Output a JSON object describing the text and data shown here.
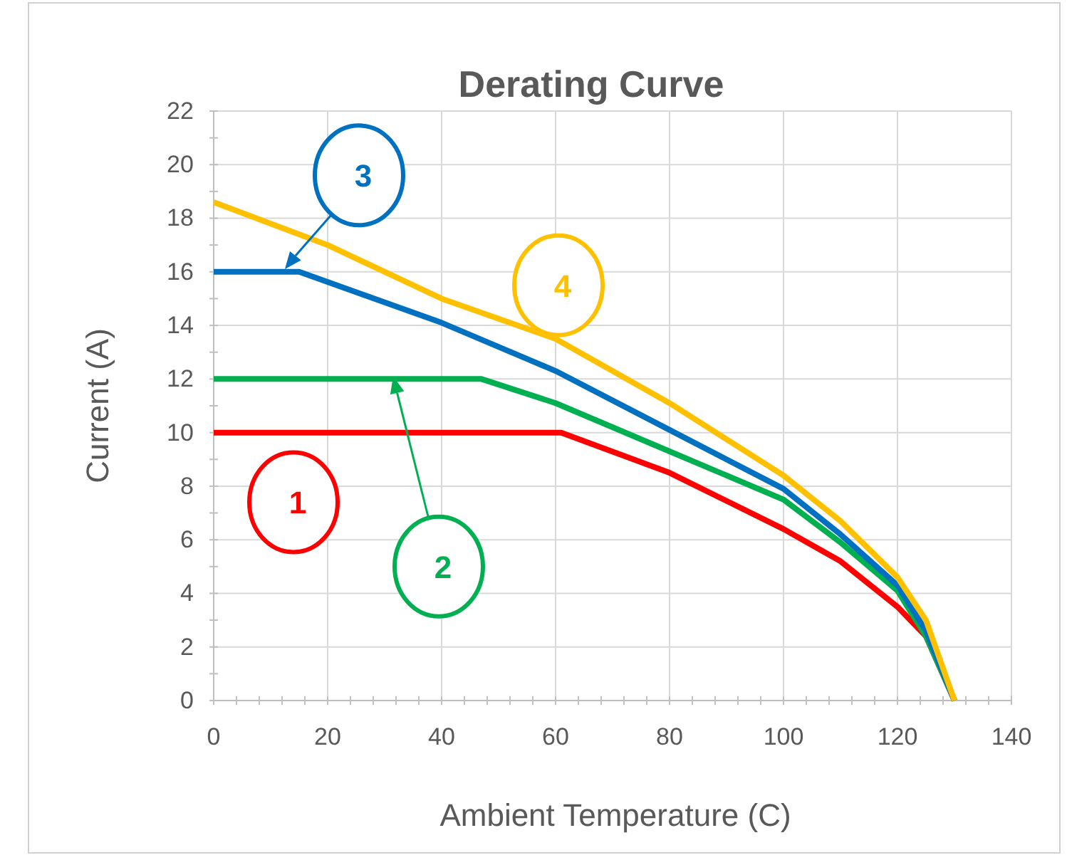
{
  "chart_data": {
    "type": "line",
    "title": "Derating Curve",
    "xlabel": "Ambient Temperature (C)",
    "ylabel": "Current (A)",
    "xlim": [
      0,
      140
    ],
    "ylim": [
      0,
      22
    ],
    "xticks": [
      0,
      {
        "value": 4,
        "label": null
      },
      {
        "value": 8,
        "label": null
      },
      {
        "value": 12,
        "label": null
      },
      {
        "value": 16,
        "label": null
      },
      20,
      {
        "value": 24,
        "label": null
      },
      {
        "value": 28,
        "label": null
      },
      {
        "value": 32,
        "label": null
      },
      {
        "value": 36,
        "label": null
      },
      40,
      {
        "value": 44,
        "label": null
      },
      {
        "value": 48,
        "label": null
      },
      {
        "value": 52,
        "label": null
      },
      {
        "value": 56,
        "label": null
      },
      60,
      {
        "value": 64,
        "label": null
      },
      {
        "value": 68,
        "label": null
      },
      {
        "value": 72,
        "label": null
      },
      {
        "value": 76,
        "label": null
      },
      80,
      {
        "value": 84,
        "label": null
      },
      {
        "value": 88,
        "label": null
      },
      {
        "value": 92,
        "label": null
      },
      {
        "value": 96,
        "label": null
      },
      100,
      {
        "value": 104,
        "label": null
      },
      {
        "value": 108,
        "label": null
      },
      {
        "value": 112,
        "label": null
      },
      {
        "value": 116,
        "label": null
      },
      120,
      {
        "value": 124,
        "label": null
      },
      {
        "value": 128,
        "label": null
      },
      {
        "value": 132,
        "label": null
      },
      {
        "value": 136,
        "label": null
      },
      140
    ],
    "yticks": [
      0,
      {
        "value": 1,
        "label": null
      },
      2,
      {
        "value": 3,
        "label": null
      },
      4,
      {
        "value": 5,
        "label": null
      },
      6,
      {
        "value": 7,
        "label": null
      },
      8,
      {
        "value": 9,
        "label": null
      },
      10,
      {
        "value": 11,
        "label": null
      },
      12,
      {
        "value": 13,
        "label": null
      },
      14,
      {
        "value": 15,
        "label": null
      },
      16,
      {
        "value": 17,
        "label": null
      },
      18,
      {
        "value": 19,
        "label": null
      },
      20,
      {
        "value": 21,
        "label": null
      },
      22
    ],
    "grid": true,
    "line_style": "solid",
    "marker": "none",
    "series": [
      {
        "name": "1",
        "color": "#ff0000",
        "x": [
          0,
          61,
          80,
          100,
          110,
          120,
          125,
          130
        ],
        "values": [
          10,
          10,
          8.5,
          6.4,
          5.2,
          3.5,
          2.4,
          0
        ]
      },
      {
        "name": "2",
        "color": "#00b050",
        "x": [
          0,
          47,
          60,
          80,
          100,
          110,
          120,
          125,
          130
        ],
        "values": [
          12,
          12,
          11.1,
          9.3,
          7.5,
          5.9,
          4.1,
          2.4,
          0
        ]
      },
      {
        "name": "3",
        "color": "#0070c0",
        "x": [
          0,
          15,
          40,
          60,
          80,
          100,
          110,
          120,
          125,
          130
        ],
        "values": [
          16,
          16,
          14.1,
          12.3,
          10.1,
          7.9,
          6.2,
          4.3,
          2.6,
          0
        ]
      },
      {
        "name": "4",
        "color": "#ffc000",
        "x": [
          0,
          20,
          40,
          60,
          80,
          100,
          110,
          120,
          125,
          130
        ],
        "values": [
          18.6,
          17.0,
          15.0,
          13.5,
          11.1,
          8.4,
          6.7,
          4.6,
          3.0,
          0
        ]
      }
    ]
  }
}
